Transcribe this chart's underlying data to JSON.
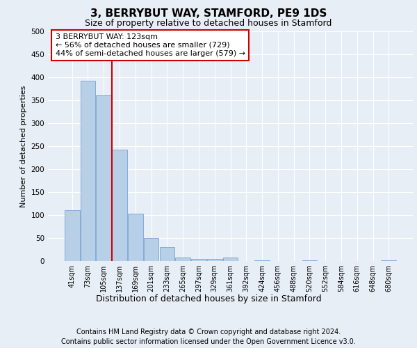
{
  "title": "3, BERRYBUT WAY, STAMFORD, PE9 1DS",
  "subtitle": "Size of property relative to detached houses in Stamford",
  "xlabel": "Distribution of detached houses by size in Stamford",
  "ylabel": "Number of detached properties",
  "footer_line1": "Contains HM Land Registry data © Crown copyright and database right 2024.",
  "footer_line2": "Contains public sector information licensed under the Open Government Licence v3.0.",
  "bar_labels": [
    "41sqm",
    "73sqm",
    "105sqm",
    "137sqm",
    "169sqm",
    "201sqm",
    "233sqm",
    "265sqm",
    "297sqm",
    "329sqm",
    "361sqm",
    "392sqm",
    "424sqm",
    "456sqm",
    "488sqm",
    "520sqm",
    "552sqm",
    "584sqm",
    "616sqm",
    "648sqm",
    "680sqm"
  ],
  "bar_values": [
    111,
    393,
    360,
    243,
    103,
    50,
    30,
    8,
    5,
    4,
    7,
    0,
    2,
    0,
    0,
    1,
    0,
    0,
    0,
    0,
    1
  ],
  "bar_color": "#b8cfe8",
  "bar_edge_color": "#6699cc",
  "bg_color": "#e8eef5",
  "plot_bg_color": "#e8eef5",
  "grid_color": "#ffffff",
  "vline_color": "#cc0000",
  "vline_x": 2.5,
  "annotation_line1": "3 BERRYBUT WAY: 123sqm",
  "annotation_line2": "← 56% of detached houses are smaller (729)",
  "annotation_line3": "44% of semi-detached houses are larger (579) →",
  "annotation_box_color": "#ffffff",
  "annotation_box_edge": "#cc0000",
  "ylim": [
    0,
    500
  ],
  "yticks": [
    0,
    50,
    100,
    150,
    200,
    250,
    300,
    350,
    400,
    450,
    500
  ],
  "title_fontsize": 11,
  "subtitle_fontsize": 9,
  "ylabel_fontsize": 8,
  "xlabel_fontsize": 9,
  "footer_fontsize": 7,
  "annotation_fontsize": 8
}
